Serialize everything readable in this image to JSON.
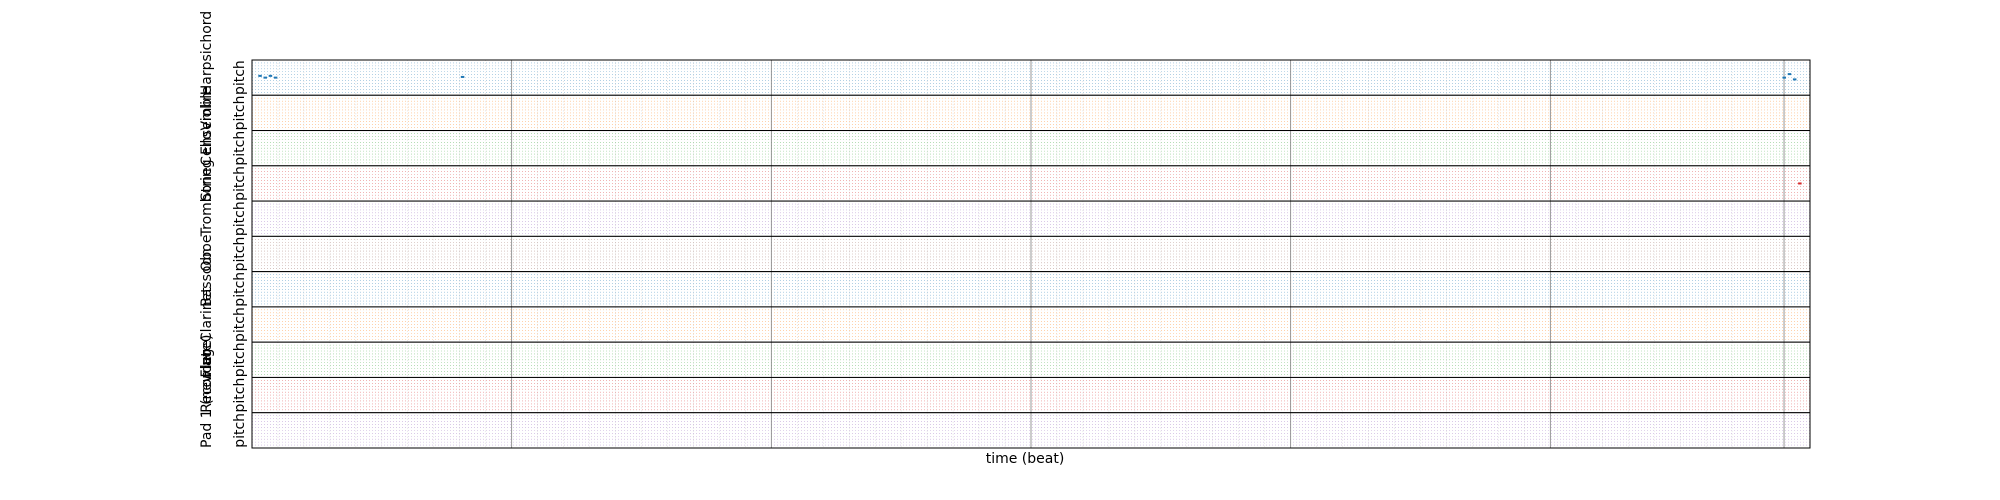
{
  "chart_data": {
    "type": "scatter",
    "subtype": "multitrack-pianoroll",
    "title": "",
    "xlabel": "time (beat)",
    "ylabel": "pitch",
    "x_tick_labels": [],
    "y_tick_labels": [],
    "grid": true,
    "legend": "none",
    "axis_color": "#000000",
    "grid_color": "#b0b0b0",
    "tracks": [
      {
        "name": "Harpsichord",
        "color": "#1f77b4",
        "fraction_of_track_ticks_shown": 1.0,
        "notes": [
          {
            "beat": 0.3,
            "pitch": 0.55
          },
          {
            "beat": 0.5,
            "pitch": 0.5
          },
          {
            "beat": 0.7,
            "pitch": 0.55
          },
          {
            "beat": 0.9,
            "pitch": 0.5
          },
          {
            "beat": 8.1,
            "pitch": 0.52
          },
          {
            "beat": 59.0,
            "pitch": 0.5
          },
          {
            "beat": 59.2,
            "pitch": 0.6
          },
          {
            "beat": 59.4,
            "pitch": 0.45
          }
        ]
      },
      {
        "name": "Violin",
        "color": "#ff7f0e",
        "notes": []
      },
      {
        "name": "Cello",
        "color": "#2ca02c",
        "notes": []
      },
      {
        "name": "String Ensemble",
        "color": "#d62728",
        "notes": [
          {
            "beat": 59.6,
            "pitch": 0.5
          }
        ]
      },
      {
        "name": "Trombone",
        "color": "#9467bd",
        "notes": []
      },
      {
        "name": "Oboe",
        "color": "#8c564b",
        "notes": []
      },
      {
        "name": "Bassoon",
        "color": "#1f77b4",
        "notes": []
      },
      {
        "name": "Clarinet",
        "color": "#ff7f0e",
        "notes": []
      },
      {
        "name": "Flute",
        "color": "#2ca02c",
        "notes": []
      },
      {
        "name": "Recorder",
        "color": "#d62728",
        "notes": []
      },
      {
        "name": "Pad 1 (new age)",
        "color": "#9467bd",
        "notes": []
      }
    ],
    "xlim": [
      0,
      60
    ],
    "beat_lines_major": [
      0,
      10,
      20,
      30,
      40,
      50,
      59
    ]
  }
}
